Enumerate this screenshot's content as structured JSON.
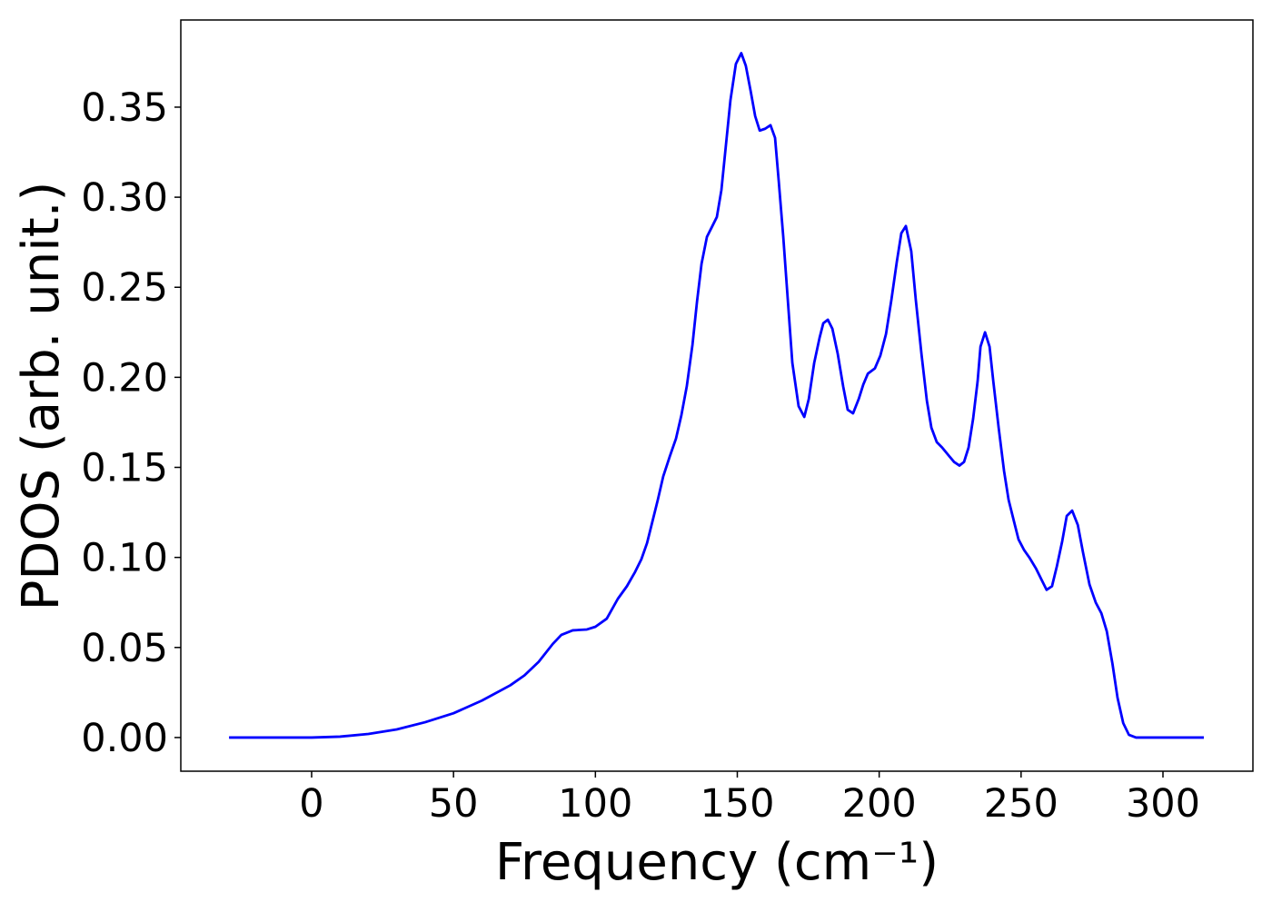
{
  "chart_data": {
    "type": "line",
    "x_label": "Frequency (cm⁻¹)",
    "y_label": "PDOS (arb. unit.)",
    "color": "#0000ff",
    "x": [
      -29.1,
      0,
      10,
      20,
      30,
      40,
      50,
      60,
      70,
      75,
      80,
      85,
      88,
      92,
      97,
      100,
      104,
      107.9,
      111.1,
      114.0,
      116.2,
      118.2,
      120.1,
      122.0,
      123.9,
      126.2,
      128.4,
      130.3,
      132.2,
      134.2,
      135.8,
      137.4,
      139.3,
      140.9,
      142.8,
      144.4,
      146.0,
      147.6,
      149.5,
      151.4,
      153.0,
      154.7,
      156.3,
      157.9,
      159.8,
      161.7,
      163.3,
      164.6,
      166.2,
      167.8,
      169.4,
      171.6,
      173.6,
      175.2,
      177.1,
      179.0,
      180.3,
      181.9,
      183.5,
      185.4,
      187.3,
      188.9,
      190.8,
      192.8,
      194.4,
      196.0,
      198.5,
      200.4,
      202.4,
      204.3,
      206.2,
      207.8,
      209.4,
      211.3,
      212.9,
      214.9,
      216.8,
      218.4,
      220.3,
      222.2,
      224.8,
      226.4,
      228.3,
      229.9,
      231.5,
      233.1,
      234.7,
      235.7,
      237.3,
      238.9,
      240.2,
      242.1,
      244.0,
      245.6,
      247.5,
      249.1,
      251.1,
      252.9,
      255.2,
      257.1,
      259.0,
      260.9,
      262.6,
      264.5,
      266.1,
      268.0,
      270.0,
      271.8,
      274.1,
      276.3,
      278.3,
      280.2,
      282.2,
      284.0,
      286.0,
      288.0,
      290.5,
      314.4
    ],
    "values": [
      0,
      0,
      0.0005,
      0.002,
      0.0045,
      0.0085,
      0.0135,
      0.0205,
      0.029,
      0.0345,
      0.042,
      0.052,
      0.057,
      0.0595,
      0.06,
      0.0615,
      0.066,
      0.077,
      0.084,
      0.092,
      0.099,
      0.108,
      0.12,
      0.132,
      0.145,
      0.156,
      0.166,
      0.179,
      0.195,
      0.218,
      0.242,
      0.263,
      0.278,
      0.283,
      0.289,
      0.304,
      0.329,
      0.354,
      0.374,
      0.38,
      0.373,
      0.359,
      0.345,
      0.337,
      0.338,
      0.34,
      0.333,
      0.309,
      0.278,
      0.243,
      0.208,
      0.184,
      0.178,
      0.188,
      0.208,
      0.222,
      0.23,
      0.232,
      0.227,
      0.213,
      0.195,
      0.182,
      0.18,
      0.188,
      0.196,
      0.202,
      0.205,
      0.212,
      0.224,
      0.243,
      0.264,
      0.28,
      0.284,
      0.27,
      0.243,
      0.213,
      0.187,
      0.172,
      0.164,
      0.161,
      0.156,
      0.153,
      0.151,
      0.153,
      0.161,
      0.177,
      0.198,
      0.217,
      0.225,
      0.217,
      0.198,
      0.172,
      0.148,
      0.132,
      0.12,
      0.11,
      0.104,
      0.1,
      0.094,
      0.088,
      0.082,
      0.084,
      0.095,
      0.109,
      0.123,
      0.126,
      0.118,
      0.103,
      0.085,
      0.075,
      0.069,
      0.059,
      0.041,
      0.022,
      0.008,
      0.0015,
      0,
      0
    ],
    "xlim": [
      -46.1,
      331.7
    ],
    "ylim": [
      -0.0187,
      0.3984
    ],
    "xticks": [
      0,
      50,
      100,
      150,
      200,
      250,
      300
    ],
    "yticks": [
      {
        "value": 0,
        "label": "0.00"
      },
      0.05,
      {
        "value": 0.1,
        "label": "0.10"
      },
      0.15,
      {
        "value": 0.2,
        "label": "0.20"
      },
      0.25,
      {
        "value": 0.3,
        "label": "0.30"
      },
      0.35
    ],
    "grid": false
  }
}
